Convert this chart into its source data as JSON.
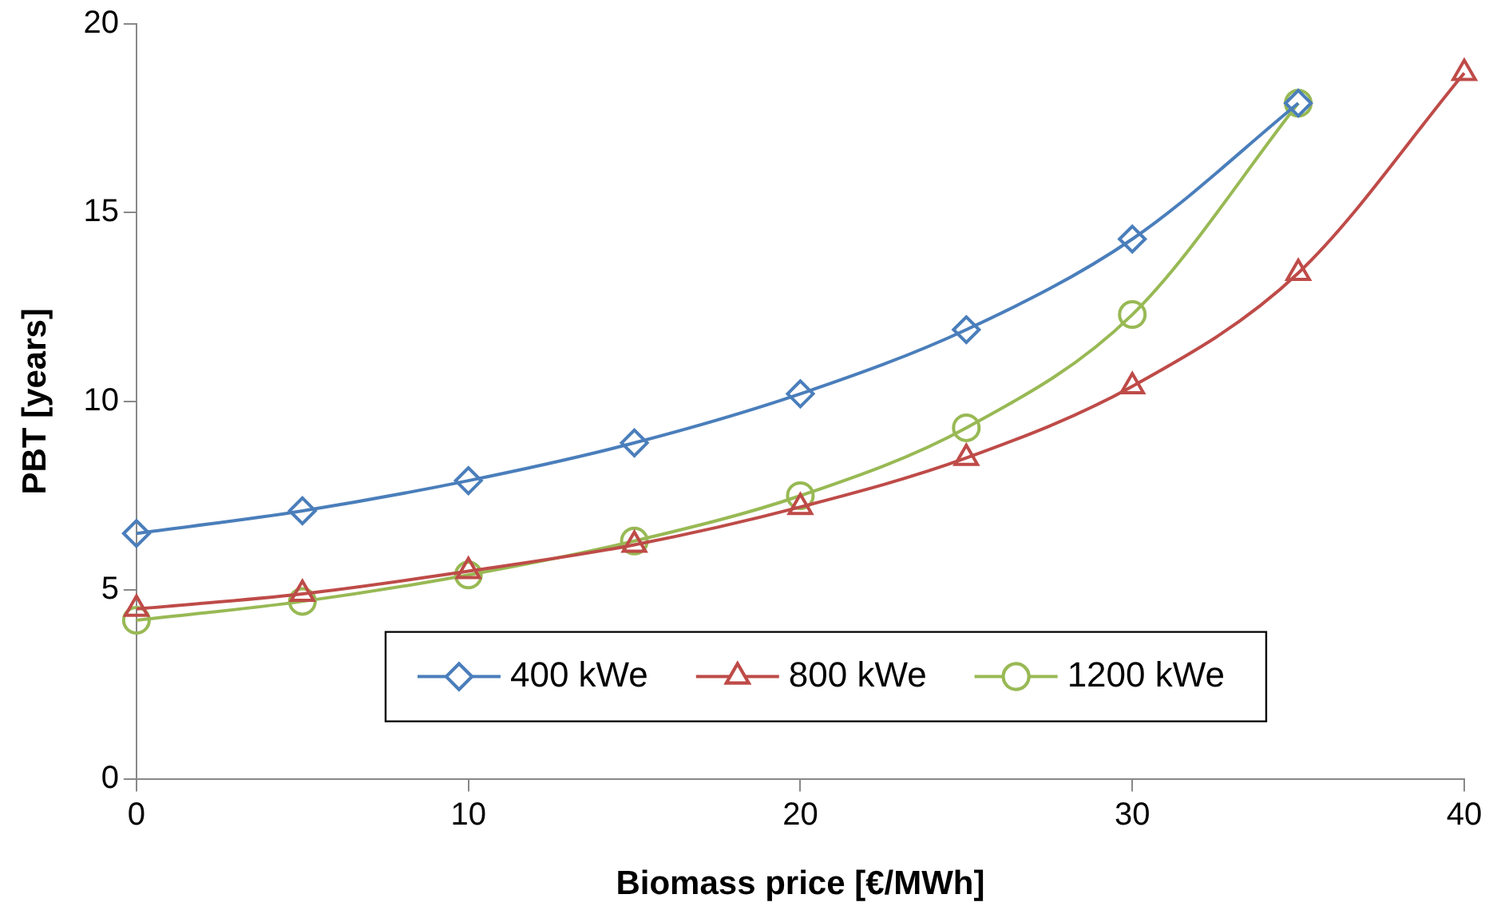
{
  "chart_data": {
    "type": "line",
    "xlabel": "Biomass price [€/MWh]",
    "ylabel": "PBT [years]",
    "xlim": [
      0,
      40
    ],
    "xticks": [
      0,
      10,
      20,
      30,
      40
    ],
    "ylim": [
      0,
      20
    ],
    "yticks": [
      0,
      5,
      10,
      15,
      20
    ],
    "grid": false,
    "legend": "bottom",
    "line_style": "solid",
    "series": [
      {
        "name": "400 kWe",
        "color": "#4a7ebb",
        "marker": "diamond",
        "x": [
          0,
          5,
          10,
          15,
          20,
          25,
          30,
          35
        ],
        "values": [
          6.5,
          7.1,
          7.9,
          8.9,
          10.2,
          11.9,
          14.3,
          17.9
        ]
      },
      {
        "name": "800 kWe",
        "color": "#be4b48",
        "marker": "triangle",
        "x": [
          0,
          5,
          10,
          15,
          20,
          25,
          30,
          35,
          40
        ],
        "values": [
          4.5,
          4.9,
          5.5,
          6.2,
          7.2,
          8.5,
          10.4,
          13.4,
          18.7
        ]
      },
      {
        "name": "1200 kWe",
        "color": "#98b954",
        "marker": "circle",
        "x": [
          0,
          5,
          10,
          15,
          20,
          25,
          30,
          35
        ],
        "values": [
          4.2,
          4.7,
          5.4,
          6.3,
          7.5,
          9.3,
          12.3,
          17.9
        ]
      }
    ]
  }
}
